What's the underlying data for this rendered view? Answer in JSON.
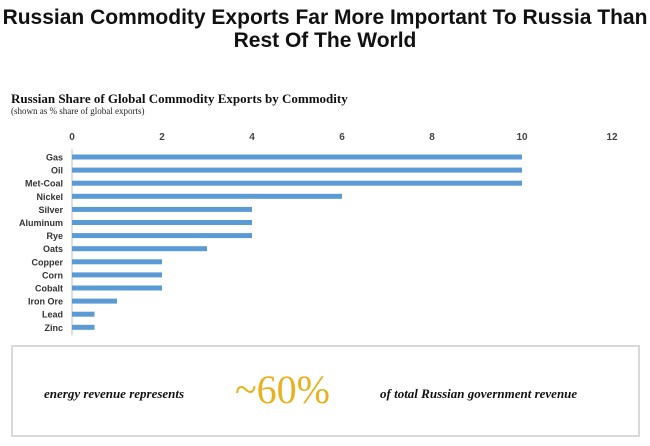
{
  "headline": "Russian Commodity Exports Far More Important To Russia Than Rest Of The World",
  "chart_data": {
    "type": "bar",
    "orientation": "horizontal",
    "title": "Russian Share of Global Commodity Exports by Commodity",
    "subtitle": "(shown as % share of global exports)",
    "categories": [
      "Gas",
      "Oil",
      "Met-Coal",
      "Nickel",
      "Silver",
      "Aluminum",
      "Rye",
      "Oats",
      "Copper",
      "Corn",
      "Cobalt",
      "Iron Ore",
      "Lead",
      "Zinc"
    ],
    "values": [
      10,
      10,
      10,
      6,
      4,
      4,
      4,
      3,
      2,
      2,
      2,
      1,
      0.5,
      0.5
    ],
    "xlim": [
      0,
      12
    ],
    "xticks": [
      "0",
      "2",
      "4",
      "6",
      "8",
      "10",
      "12"
    ],
    "axis_position": "top",
    "grid": false,
    "bar_color": "#5b9bd5"
  },
  "callout": {
    "left_text": "energy revenue represents",
    "big_text": "~60%",
    "right_text": "of total Russian government revenue",
    "big_color": "#e8b21f"
  }
}
